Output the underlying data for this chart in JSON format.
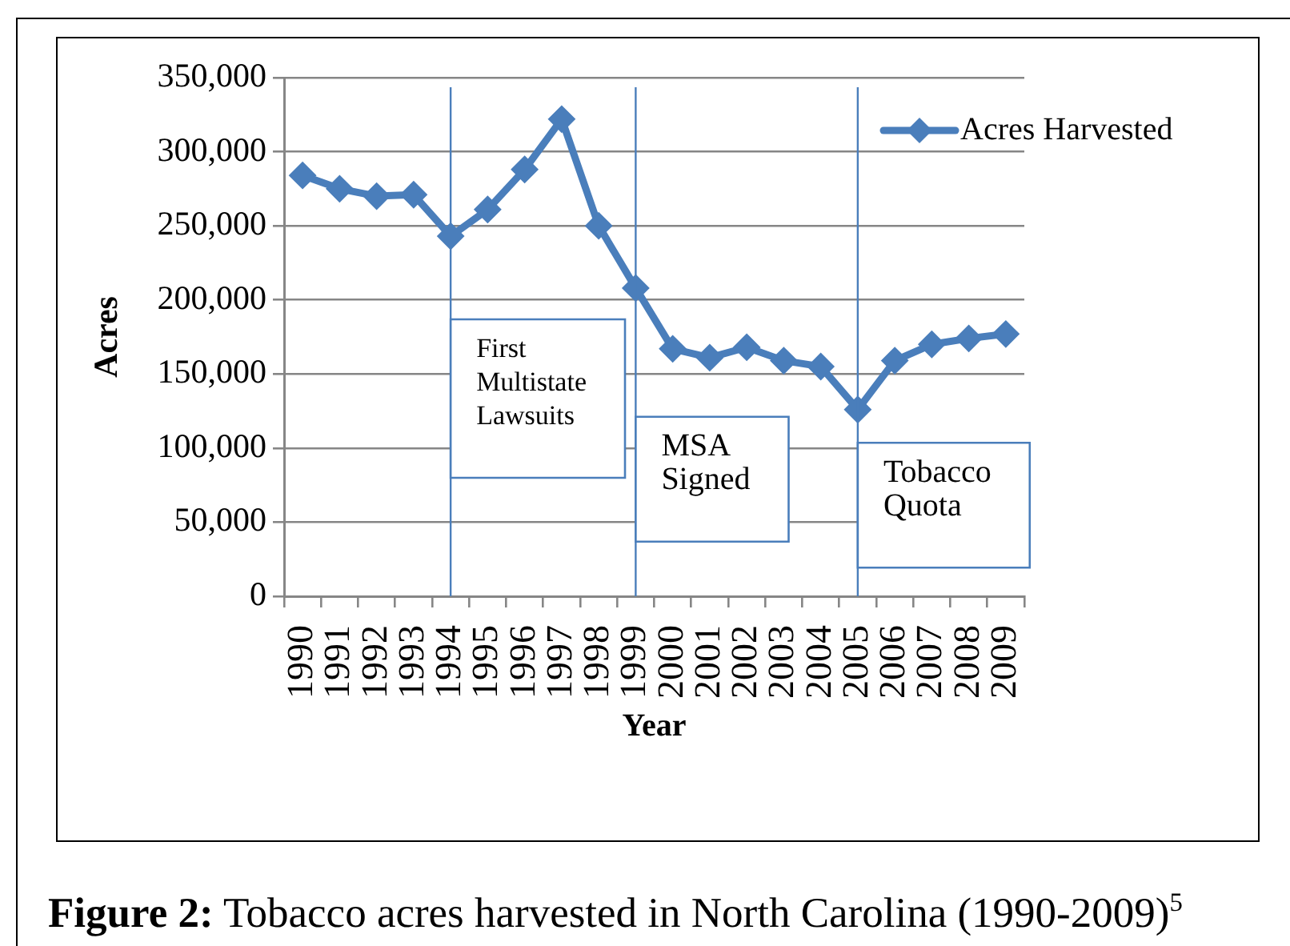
{
  "chart_data": {
    "type": "line",
    "xlabel": "Year",
    "ylabel": "Acres",
    "categories": [
      "1990",
      "1991",
      "1992",
      "1993",
      "1994",
      "1995",
      "1996",
      "1997",
      "1998",
      "1999",
      "2000",
      "2001",
      "2002",
      "2003",
      "2004",
      "2005",
      "2006",
      "2007",
      "2008",
      "2009"
    ],
    "series": [
      {
        "name": "Acres Harvested",
        "color": "#4a7ebb",
        "values": [
          284000,
          275000,
          270000,
          271000,
          243000,
          261000,
          288000,
          322000,
          250000,
          208000,
          167000,
          161000,
          168000,
          159000,
          155000,
          126000,
          159000,
          170000,
          174000,
          177000
        ]
      }
    ],
    "ylim": [
      0,
      350000
    ],
    "yticks": [
      {
        "value": 0,
        "label": "0"
      },
      {
        "value": 50000,
        "label": "50,000"
      },
      {
        "value": 100000,
        "label": "100,000"
      },
      {
        "value": 150000,
        "label": "150,000"
      },
      {
        "value": 200000,
        "label": "200,000"
      },
      {
        "value": 250000,
        "label": "250,000"
      },
      {
        "value": 300000,
        "label": "300,000"
      },
      {
        "value": 350000,
        "label": "350,000"
      }
    ],
    "grid": "y",
    "legend": "top right",
    "marker": "diamond",
    "ref_lines": [
      {
        "axis": "x",
        "value": "1994",
        "label": "First Multistate Lawsuits",
        "color": "#4a7ebb"
      },
      {
        "axis": "x",
        "value": "1999",
        "label": "MSA Signed",
        "color": "#4a7ebb"
      },
      {
        "axis": "x",
        "value": "2005",
        "label": "Tobacco Quota",
        "color": "#4a7ebb"
      }
    ],
    "annotations": [
      "Figure 2: Tobacco acres harvested in North Carolina (1990-2009)$^{5}$"
    ]
  }
}
